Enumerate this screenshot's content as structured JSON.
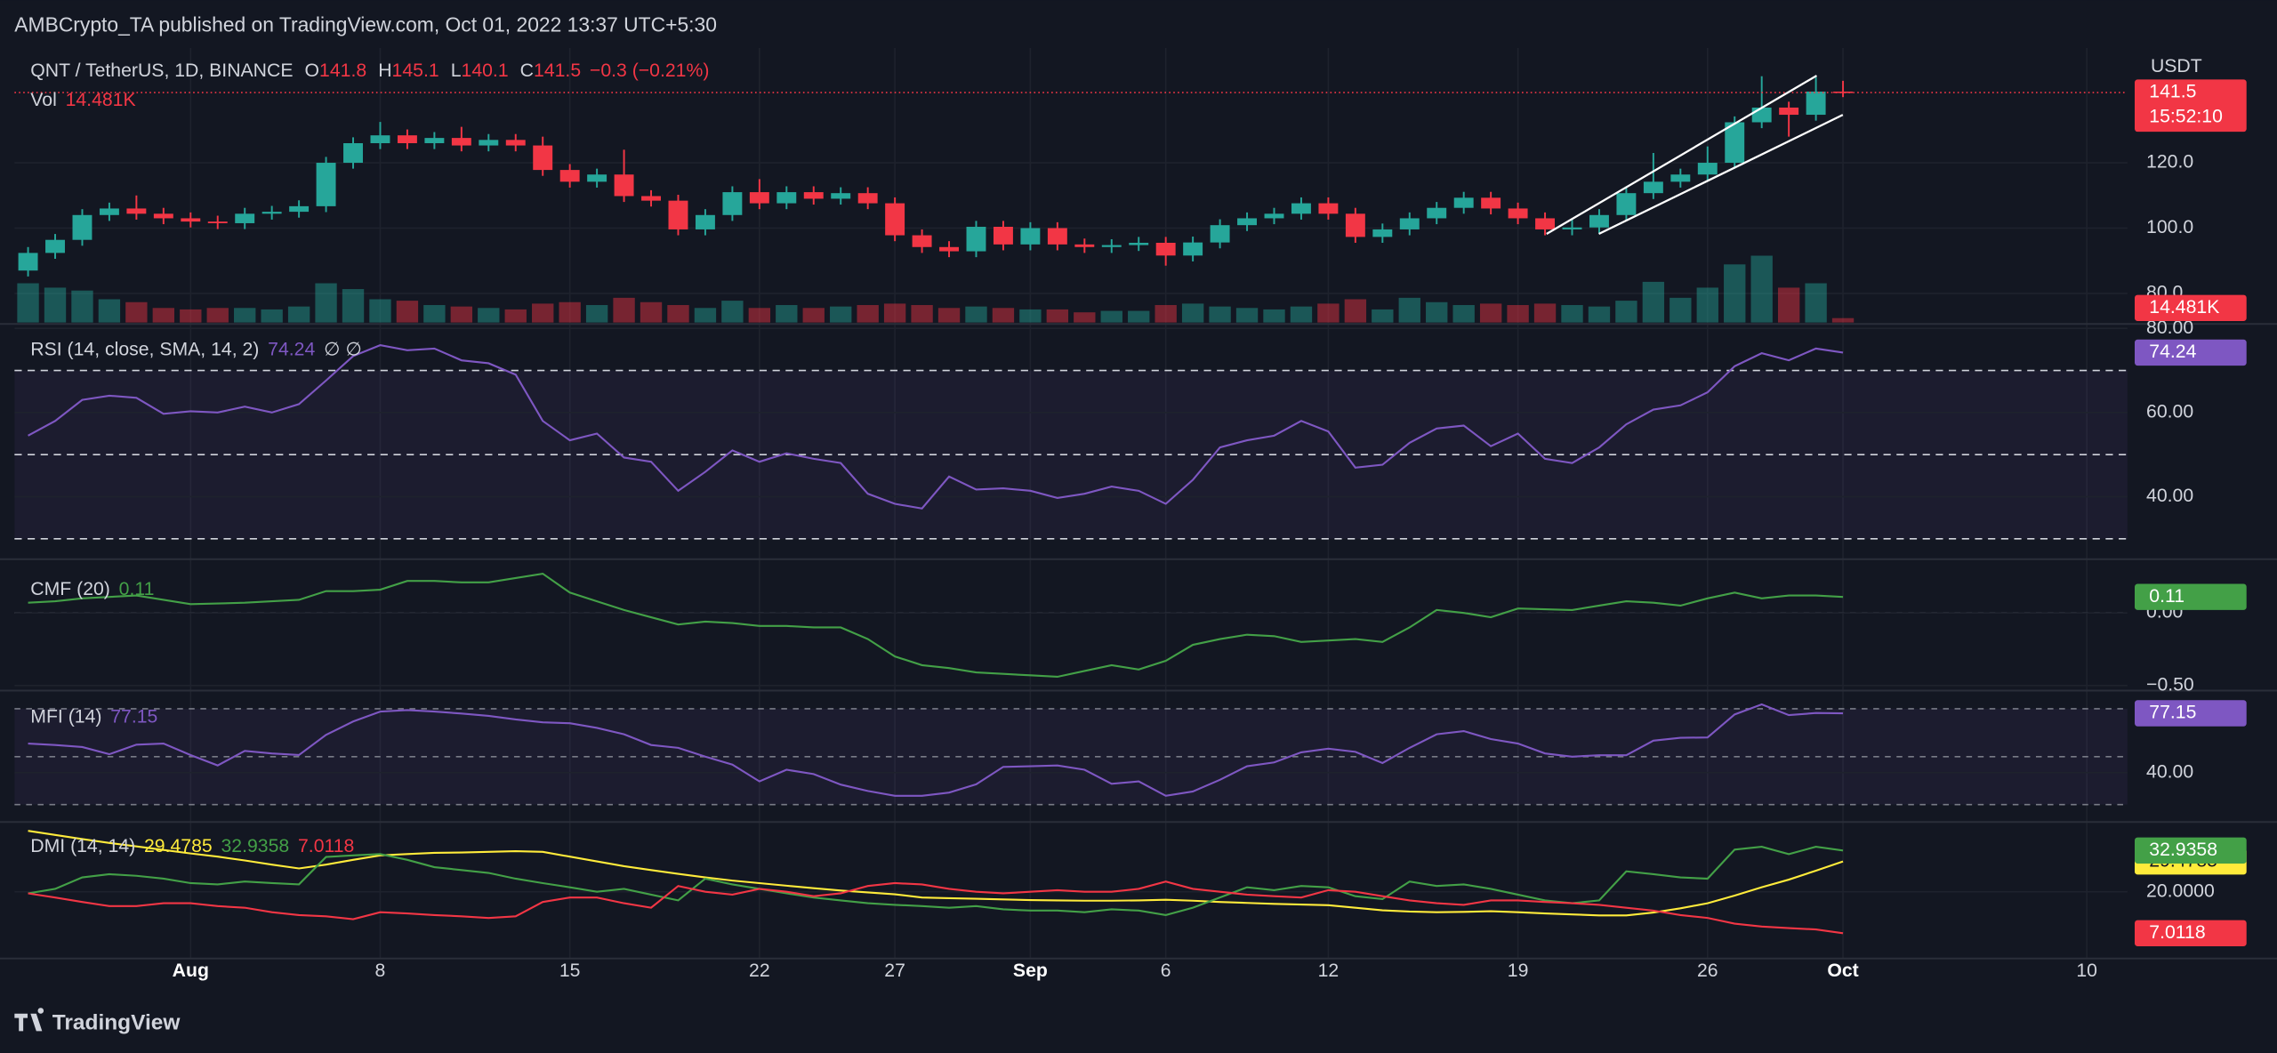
{
  "header": "AMBCrypto_TA published on TradingView.com, Oct 01, 2022 13:37 UTC+5:30",
  "footer": "TradingView",
  "chart_data": [
    {
      "type": "candlestick",
      "title": "QNT / TetherUS, 1D, BINANCE",
      "ohlc_labels": [
        "O",
        "H",
        "L",
        "C"
      ],
      "change_label": "−0.3 (−0.21%)",
      "categories": [
        null,
        null,
        null,
        null,
        null,
        null,
        "Aug",
        null,
        null,
        null,
        null,
        null,
        null,
        "8",
        null,
        null,
        null,
        null,
        null,
        null,
        "15",
        null,
        null,
        null,
        null,
        null,
        null,
        "22",
        null,
        null,
        null,
        null,
        "27",
        null,
        null,
        null,
        null,
        "Sep",
        null,
        null,
        null,
        null,
        "6",
        null,
        null,
        null,
        null,
        null,
        "12",
        null,
        null,
        null,
        null,
        null,
        null,
        "19",
        null,
        null,
        null,
        null,
        null,
        null,
        "26",
        null,
        null,
        null,
        null,
        "Oct",
        null,
        null,
        null,
        null,
        null,
        null,
        null,
        null,
        "10",
        null
      ],
      "open": [
        87,
        92.4,
        96.4,
        104,
        106,
        104.4,
        103,
        102,
        101.5,
        104.4,
        105,
        106.7,
        120,
        126,
        128.4,
        126,
        127.6,
        125.3,
        127,
        125.3,
        117.8,
        114.2,
        116.4,
        109.8,
        108.4,
        99.6,
        104,
        111,
        107.6,
        111,
        109,
        110.7,
        107.6,
        97.8,
        94.2,
        92.9,
        100.4,
        95,
        100,
        95,
        94.2,
        94.8,
        95.5,
        91.6,
        95.6,
        100.9,
        103,
        104.4,
        107.6,
        104.4,
        97.3,
        99.6,
        103,
        106.2,
        109.3,
        106,
        103,
        99.6,
        100.2,
        104,
        110.7,
        114.2,
        116.4,
        120,
        132.4,
        136.9,
        134.7,
        141.8,
        null,
        null,
        null,
        null,
        null,
        null,
        null,
        null,
        null,
        null
      ],
      "high": [
        94.2,
        98.2,
        105.8,
        107.8,
        110,
        106.2,
        104.8,
        103.8,
        106.2,
        106.8,
        108.5,
        121.8,
        127.8,
        132.5,
        130.2,
        129.4,
        131,
        128.8,
        128.8,
        128,
        119.6,
        118.2,
        124,
        111.6,
        110.2,
        105.8,
        112.8,
        115,
        112.8,
        112.8,
        112.5,
        112.5,
        109.4,
        99.6,
        96,
        102.2,
        102.2,
        101.8,
        101.8,
        96.8,
        96.6,
        97.3,
        97.3,
        97.4,
        102.7,
        104.8,
        106.2,
        109.4,
        109.4,
        106.2,
        101.4,
        104.8,
        108,
        111.1,
        111.1,
        107.8,
        104.8,
        103,
        105.8,
        112.5,
        123,
        118.2,
        125,
        134.2,
        146.5,
        138.7,
        146.2,
        145.1,
        null,
        null,
        null,
        null,
        null,
        null,
        null,
        null,
        null,
        null
      ],
      "low": [
        85.2,
        90.6,
        94.6,
        102.2,
        102.6,
        101.2,
        100.2,
        99.7,
        99.7,
        102.6,
        103.2,
        104.9,
        118.2,
        124.2,
        124.2,
        124.2,
        123.5,
        123.5,
        123.5,
        116,
        112.4,
        112.4,
        108,
        106.6,
        97.8,
        97.8,
        102.2,
        105.8,
        105.8,
        107.2,
        107.2,
        105.8,
        96,
        92.4,
        91.1,
        91.1,
        93.2,
        93.2,
        93.2,
        92.4,
        92.4,
        93,
        88.5,
        89.8,
        93.8,
        99.1,
        101.2,
        102.6,
        102.6,
        95.5,
        95.5,
        97.8,
        101.2,
        104.4,
        104.2,
        101.2,
        97.8,
        97.8,
        98.4,
        102.2,
        108.9,
        112.4,
        114.6,
        118.2,
        130.6,
        128,
        132.9,
        140.1,
        null,
        null,
        null,
        null,
        null,
        null,
        null,
        null,
        null,
        null
      ],
      "close": [
        92.4,
        96.4,
        104,
        106,
        104.4,
        103,
        102,
        101.5,
        104.4,
        105,
        106.7,
        120,
        126,
        128.4,
        126,
        127.6,
        125.3,
        127,
        125.3,
        117.8,
        114.2,
        116.4,
        109.8,
        108.4,
        99.6,
        104,
        111,
        107.6,
        111,
        109,
        110.7,
        107.6,
        97.8,
        94.2,
        92.9,
        100.4,
        95,
        100,
        95,
        94.2,
        94.8,
        95.5,
        91.6,
        95.6,
        100.9,
        103,
        104.4,
        107.6,
        104.4,
        97.3,
        99.6,
        103,
        106.2,
        109.3,
        106,
        103,
        99.6,
        100.2,
        104,
        110.7,
        114.2,
        116.4,
        120,
        132.4,
        136.9,
        134.7,
        141.8,
        141.5,
        null,
        null,
        null,
        null,
        null,
        null,
        null,
        null,
        null,
        null
      ],
      "up_color": "#26a69a",
      "down_color": "#f23645",
      "ylim": [
        71.1,
        152.9
      ],
      "yticks": [
        {
          "value": 80,
          "label": "80.0"
        },
        {
          "value": 100,
          "label": "100.0"
        },
        {
          "value": 120,
          "label": "120.0"
        }
      ],
      "y_unit": "USDT",
      "countdown": "15:52:10",
      "volume": {
        "name": "Vol",
        "ylim": [
          0,
          883000
        ],
        "values": [
          129600,
          115200,
          105600,
          76800,
          67200,
          48000,
          43200,
          48000,
          48000,
          43200,
          52800,
          129600,
          110400,
          76800,
          72000,
          57600,
          52800,
          48000,
          43200,
          62400,
          67200,
          57600,
          81600,
          67200,
          57600,
          48000,
          72000,
          48000,
          57600,
          48000,
          52800,
          57600,
          62400,
          57600,
          48000,
          52800,
          48000,
          43200,
          43200,
          33600,
          38400,
          38400,
          57600,
          62400,
          52800,
          48000,
          43200,
          52800,
          62400,
          76800,
          43200,
          81600,
          67200,
          57600,
          62400,
          57600,
          62400,
          57600,
          52800,
          72000,
          134400,
          81600,
          115200,
          192000,
          220800,
          115200,
          129600,
          14481,
          null,
          null,
          null,
          null,
          null,
          null,
          null,
          null,
          null,
          null
        ],
        "value_labels": [
          null,
          null,
          null,
          null,
          null,
          null,
          null,
          null,
          null,
          null,
          null,
          null,
          null,
          null,
          null,
          null,
          null,
          null,
          null,
          null,
          null,
          null,
          null,
          null,
          null,
          null,
          null,
          null,
          null,
          null,
          null,
          null,
          null,
          null,
          null,
          null,
          null,
          null,
          null,
          null,
          null,
          null,
          null,
          null,
          null,
          null,
          null,
          null,
          null,
          null,
          null,
          null,
          null,
          null,
          null,
          null,
          null,
          null,
          null,
          null,
          null,
          null,
          null,
          null,
          null,
          null,
          null,
          "14.481K",
          null,
          null,
          null,
          null,
          null,
          null,
          null,
          null,
          null,
          null
        ]
      }
    },
    {
      "type": "line",
      "title": "RSI (14, close, SMA, 14, 2)",
      "extra_label": "∅ ∅",
      "color": "#7e57c2",
      "values": [
        54.5,
        58,
        63,
        64,
        63.5,
        59.7,
        60.3,
        60,
        61.4,
        60,
        62,
        67.6,
        73.4,
        76,
        74.8,
        75.2,
        72.4,
        71.7,
        69,
        58,
        53.4,
        55,
        49.3,
        48.3,
        41.4,
        45.9,
        51,
        48.3,
        50.3,
        49,
        48,
        40.7,
        38.3,
        37.2,
        44.8,
        41.7,
        42,
        41.4,
        39.7,
        40.7,
        42.4,
        41.4,
        38.3,
        44,
        51.7,
        53.4,
        54.5,
        58,
        55.5,
        46.9,
        47.6,
        52.8,
        56.2,
        56.9,
        52,
        55,
        49,
        48,
        51.7,
        57.2,
        60.7,
        61.7,
        64.8,
        71,
        74.1,
        72.4,
        75.2,
        74.24,
        null,
        null,
        null,
        null,
        null,
        null,
        null,
        null,
        null,
        null
      ],
      "ylim": [
        25.5,
        80.7
      ],
      "yticks": [
        {
          "value": 80,
          "label": "80.00"
        },
        {
          "value": 60,
          "label": "60.00"
        },
        {
          "value": 40,
          "label": "40.00"
        }
      ],
      "bands": [
        30,
        50,
        70
      ],
      "band_fill": "rgba(126,87,194,0.09)",
      "band_color": "#d1d4dc"
    },
    {
      "type": "line",
      "title": "CMF (20)",
      "color": "#43a047",
      "values": [
        0.07,
        0.08,
        0.1,
        0.11,
        0.12,
        0.09,
        0.06,
        0.065,
        0.07,
        0.08,
        0.09,
        0.15,
        0.15,
        0.16,
        0.22,
        0.22,
        0.21,
        0.21,
        0.24,
        0.27,
        0.14,
        0.08,
        0.02,
        -0.03,
        -0.08,
        -0.06,
        -0.07,
        -0.09,
        -0.09,
        -0.1,
        -0.1,
        -0.18,
        -0.3,
        -0.36,
        -0.38,
        -0.41,
        -0.42,
        -0.43,
        -0.44,
        -0.4,
        -0.36,
        -0.39,
        -0.33,
        -0.22,
        -0.18,
        -0.15,
        -0.16,
        -0.2,
        -0.19,
        -0.18,
        -0.2,
        -0.1,
        0.02,
        0,
        -0.03,
        0.03,
        0.025,
        0.02,
        0.05,
        0.08,
        0.07,
        0.05,
        0.1,
        0.14,
        0.1,
        0.12,
        0.12,
        0.11,
        null,
        null,
        null,
        null,
        null,
        null,
        null,
        null,
        null,
        null
      ],
      "ylim": [
        -0.53,
        0.36
      ],
      "yticks": [
        {
          "value": 0,
          "label": "0.00"
        },
        {
          "value": -0.5,
          "label": "−0.50"
        }
      ],
      "bands": [
        0
      ],
      "band_color": "#787b86"
    },
    {
      "type": "line",
      "title": "MFI (14)",
      "color": "#7e57c2",
      "values": [
        58.2,
        57.3,
        56,
        51.5,
        57.5,
        58.2,
        51,
        44.5,
        53.6,
        52,
        51,
        63.6,
        72,
        78.2,
        79.1,
        78.2,
        77,
        75.5,
        73.3,
        71.5,
        70.9,
        68,
        64,
        57.3,
        55.5,
        50,
        45,
        34.5,
        41.8,
        39.1,
        32.5,
        28.5,
        25.5,
        25.5,
        27.5,
        32.7,
        43.6,
        44,
        44.5,
        41.8,
        33,
        34.5,
        25.5,
        28.2,
        35.5,
        44,
        46.4,
        52.7,
        55,
        53,
        46,
        55.5,
        64,
        66,
        61,
        58.2,
        52,
        50,
        50.9,
        50.9,
        60,
        61.8,
        62,
        76.4,
        82.7,
        76,
        77.3,
        77.15,
        null,
        null,
        null,
        null,
        null,
        null,
        null,
        null,
        null,
        null
      ],
      "ylim": [
        10,
        90.9
      ],
      "yticks": [
        {
          "value": 40,
          "label": "40.00"
        }
      ],
      "bands": [
        20,
        50,
        80
      ],
      "band_fill": "rgba(126,87,194,0.09)",
      "band_color": "#787b86"
    },
    {
      "type": "line",
      "title": "DMI (14, 14)",
      "series": [
        {
          "color": "#ffeb3b",
          "values": [
            39.1,
            37.8,
            36.5,
            35.3,
            34.2,
            33.1,
            32,
            31,
            29.8,
            28.5,
            27.3,
            28.5,
            30,
            31.4,
            31.8,
            32.2,
            32.3,
            32.5,
            32.7,
            32.5,
            31,
            29.5,
            28,
            26.8,
            25.6,
            24.5,
            23.5,
            22.7,
            21.9,
            21.1,
            20.4,
            19.8,
            19.2,
            18.2,
            18,
            17.8,
            17.6,
            17.4,
            17.3,
            17.2,
            17.2,
            17.3,
            17.5,
            17.2,
            16.8,
            16.5,
            16.2,
            16,
            15.8,
            15,
            14.2,
            13.8,
            13.6,
            13.7,
            13.9,
            13.6,
            13.2,
            12.9,
            12.6,
            12.6,
            13.5,
            14.8,
            16.4,
            18.8,
            21.4,
            23.8,
            26.6,
            29.4785,
            null,
            null,
            null,
            null,
            null,
            null,
            null,
            null,
            null,
            null
          ]
        },
        {
          "color": "#43a047",
          "values": [
            19.5,
            20.9,
            24.5,
            25.5,
            25,
            24.1,
            22.7,
            22.3,
            23.2,
            22.7,
            22.3,
            30.9,
            31.4,
            31.8,
            30,
            27.7,
            26.8,
            25.9,
            24.1,
            22.7,
            21.4,
            20,
            20.9,
            19.1,
            17.3,
            24.1,
            22.3,
            20.9,
            19.5,
            18.2,
            17.3,
            16.4,
            15.9,
            15.5,
            15,
            15.5,
            14.5,
            14.1,
            14.1,
            13.6,
            14.5,
            14.1,
            12.7,
            15,
            18.2,
            21.4,
            20.5,
            21.8,
            21.4,
            18.6,
            17.7,
            23.2,
            21.8,
            22.3,
            20.9,
            19.1,
            17.3,
            16.4,
            17.3,
            26.4,
            25.5,
            24.5,
            24.1,
            33.2,
            34.1,
            31.8,
            34.1,
            32.9358,
            null,
            null,
            null,
            null,
            null,
            null,
            null,
            null,
            null,
            null
          ]
        },
        {
          "color": "#f23645",
          "values": [
            19.5,
            18.2,
            16.8,
            15.5,
            15.5,
            16.4,
            16.4,
            15.5,
            15,
            13.6,
            12.7,
            12.3,
            11.4,
            13.6,
            13.2,
            12.7,
            12.3,
            11.8,
            12.3,
            16.8,
            18.2,
            18.2,
            16.4,
            15,
            21.8,
            20,
            19.1,
            20.9,
            20,
            18.6,
            19.5,
            21.8,
            22.7,
            22.3,
            20.9,
            20,
            19.5,
            20,
            20.5,
            20,
            20,
            20.9,
            23.2,
            20.9,
            20,
            19.1,
            18.6,
            18.2,
            20.5,
            20,
            18.6,
            17.3,
            16.4,
            15.9,
            17.3,
            17.3,
            16.8,
            16.4,
            15.9,
            15,
            14.1,
            12.7,
            11.8,
            10,
            9.1,
            8.6,
            8.2,
            7.0118,
            null,
            null,
            null,
            null,
            null,
            null,
            null,
            null,
            null,
            null
          ]
        }
      ],
      "ylim": [
        -0.9,
        41.4
      ],
      "yticks": [
        {
          "value": 20,
          "label": "20.0000"
        }
      ]
    }
  ]
}
